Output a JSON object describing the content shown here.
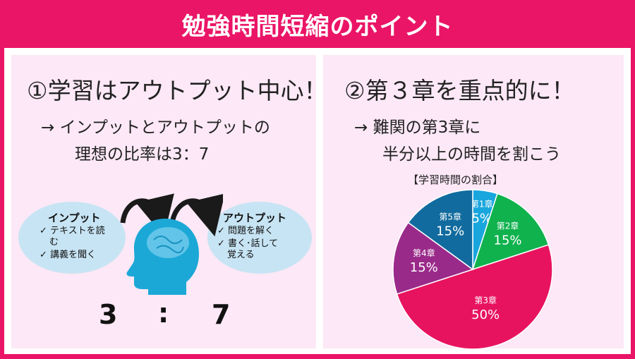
{
  "title": "勉強時間短縮のポイント",
  "left": {
    "heading": "①学習はアウトプット中心！",
    "sub_line1": "→ インプットとアウトプットの",
    "sub_line2": "理想の比率は3：7",
    "input": {
      "title": "インプット",
      "item1": "✓ テキストを読",
      "item1b": "む",
      "item2": "✓ 講義を聞く"
    },
    "output": {
      "title": "アウトプット",
      "item1": "✓ 問題を解く",
      "item2": "✓ 書く･話して",
      "item2b": "覚える"
    },
    "ratio_left": "3",
    "ratio_sep": ":",
    "ratio_right": "7",
    "head_color": "#1ba8d6",
    "arrow_color": "#1a1a1a",
    "head_icon": "head-brain-icon"
  },
  "right": {
    "heading": "②第３章を重点的に！",
    "sub_line1": "→ 難関の第3章に",
    "sub_line2": "半分以上の時間を割こう",
    "chart_title": "【学習時間の割合】"
  },
  "chart_data": {
    "type": "pie",
    "title": "【学習時間の割合】",
    "categories": [
      "第1章",
      "第2章",
      "第3章",
      "第4章",
      "第5章"
    ],
    "values": [
      5,
      15,
      50,
      15,
      15
    ],
    "labels": [
      "5%",
      "15%",
      "50%",
      "15%",
      "15%"
    ],
    "colors": [
      "#18a6dd",
      "#10b24e",
      "#e8135f",
      "#9a2a8a",
      "#116b9e"
    ],
    "start": "top, clockwise"
  }
}
